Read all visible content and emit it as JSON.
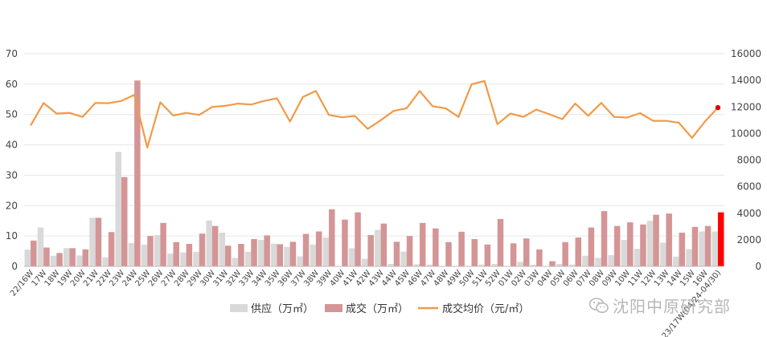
{
  "chart_data": {
    "type": "bar+line",
    "categories": [
      "22/16W",
      "17W",
      "18W",
      "19W",
      "20W",
      "21W",
      "22W",
      "23W",
      "24W",
      "25W",
      "26W",
      "27W",
      "28W",
      "29W",
      "30W",
      "31W",
      "32W",
      "33W",
      "34W",
      "35W",
      "36W",
      "37W",
      "38W",
      "39W",
      "40W",
      "41W",
      "42W",
      "43W",
      "44W",
      "45W",
      "46W",
      "47W",
      "48W",
      "49W",
      "50W",
      "51W",
      "52W",
      "01W",
      "02W",
      "03W",
      "04W",
      "05W",
      "06W",
      "07W",
      "08W",
      "09W",
      "10W",
      "11W",
      "12W",
      "13W",
      "14W",
      "15W",
      "16W",
      "23/17W(04/24-04/30)"
    ],
    "series": [
      {
        "name": "供应（万㎡）",
        "type": "bar",
        "axis": "left",
        "color": "#d9d9d9",
        "values": [
          5.5,
          12.8,
          3.5,
          6,
          3.6,
          16,
          3,
          37.7,
          7.7,
          7.2,
          10.3,
          4.2,
          4.6,
          4.8,
          15.1,
          11.1,
          2.8,
          4.8,
          8.7,
          7.5,
          6.4,
          3.3,
          7.2,
          9.5,
          0,
          6,
          2.5,
          12,
          0.8,
          4.9,
          0.7,
          0.6,
          0,
          0,
          0,
          0.6,
          0.8,
          0,
          1.5,
          0.5,
          0,
          0.8,
          0.6,
          3.5,
          2.8,
          3.7,
          8.7,
          5.8,
          15,
          7.8,
          3.2,
          5.7,
          11.5,
          11.5
        ]
      },
      {
        "name": "成交（万㎡）",
        "type": "bar",
        "axis": "left",
        "color": "#d49596",
        "values": [
          8.5,
          6.2,
          4.4,
          6,
          5.6,
          16,
          11.3,
          29.4,
          61.2,
          10,
          14.3,
          8,
          7.4,
          10.8,
          13.3,
          6.8,
          7.4,
          9,
          10.2,
          7.3,
          8.1,
          10.7,
          11.5,
          18.8,
          15.4,
          17.8,
          10.3,
          14.1,
          8.1,
          10,
          14.3,
          12.5,
          8,
          11.4,
          9,
          7.2,
          15.6,
          7.6,
          9.2,
          5.6,
          1.7,
          8,
          9.5,
          12.8,
          18.2,
          13.3,
          14.5,
          13.8,
          17,
          17.4,
          11.1,
          13,
          13.3,
          17.8
        ]
      },
      {
        "name": "成交均价（元/㎡）",
        "type": "line",
        "axis": "right",
        "color": "#f19a48",
        "values": [
          10600,
          12300,
          11500,
          11550,
          11250,
          12300,
          12280,
          12450,
          12900,
          8950,
          12350,
          11350,
          11550,
          11400,
          12000,
          12080,
          12250,
          12180,
          12450,
          12650,
          10900,
          12750,
          13200,
          11400,
          11220,
          11320,
          10350,
          11000,
          11700,
          11900,
          13200,
          12050,
          11900,
          11250,
          13700,
          13950,
          10700,
          11500,
          11250,
          11800,
          11450,
          11080,
          12250,
          11330,
          12300,
          11250,
          11200,
          11530,
          10950,
          10950,
          10800,
          9670,
          10900,
          11950
        ]
      }
    ],
    "ylim_left": [
      0,
      70
    ],
    "yticks_left": [
      0,
      10,
      20,
      30,
      40,
      50,
      60,
      70
    ],
    "ylim_right": [
      0,
      16000
    ],
    "yticks_right": [
      0,
      2000,
      4000,
      6000,
      8000,
      10000,
      12000,
      14000,
      16000
    ],
    "grid": true,
    "legend_position": "bottom",
    "highlight": {
      "category_index": 53,
      "bar_color": "#ff0000",
      "point_color": "#e00000"
    }
  },
  "legend": {
    "supply_label": "供应（万㎡）",
    "deal_label": "成交（万㎡）",
    "price_label": "成交均价（元/㎡）"
  },
  "watermark": {
    "text": "沈阳中原研究部",
    "icon": "wechat-icon"
  }
}
